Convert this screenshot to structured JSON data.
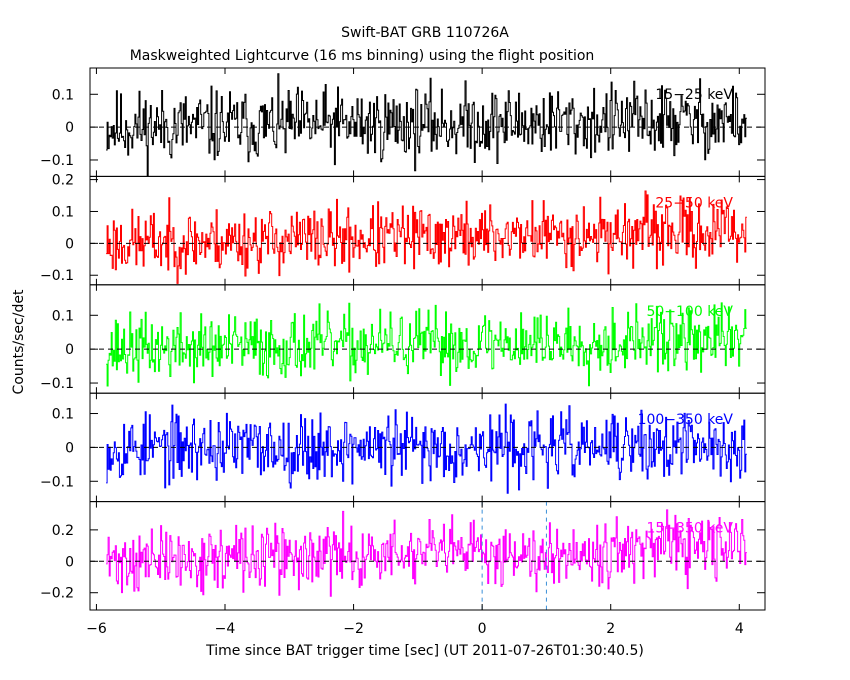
{
  "title": "Swift-BAT GRB 110726A",
  "subtitle": "Maskweighted Lightcurve (16 ms binning) using the flight position",
  "chart_data": {
    "type": "line",
    "title": "Swift-BAT GRB 110726A",
    "subtitle": "Maskweighted Lightcurve (16 ms binning) using the flight position",
    "xlabel": "Time since BAT trigger time [sec] (UT 2011-07-26T01:30:40.5)",
    "ylabel": "Counts/sec/det",
    "xlim": [
      -6.1,
      4.4
    ],
    "xticks": [
      -6,
      -4,
      -2,
      0,
      2,
      4
    ],
    "xtick_labels": [
      "−6",
      "−4",
      "−2",
      "0",
      "2",
      "4"
    ],
    "bin_seconds": 0.016,
    "x_start": -5.85,
    "x_end": 4.12,
    "zero_line": true,
    "vertical_markers_x": [
      0,
      1.0
    ],
    "panels": [
      {
        "label": "15−25 keV",
        "color": "#000000",
        "ylim": [
          -0.15,
          0.18
        ],
        "yticks": [
          -0.1,
          0,
          0.1
        ],
        "ytick_labels": [
          "−0.1",
          "0",
          "0.1"
        ],
        "mean_start": 0.0,
        "mean_end": 0.02,
        "noise": 0.055,
        "seed": 11
      },
      {
        "label": "25−50 keV",
        "color": "#ff0000",
        "ylim": [
          -0.13,
          0.21
        ],
        "yticks": [
          -0.1,
          0,
          0.1,
          0.2
        ],
        "ytick_labels": [
          "−0.1",
          "0",
          "0.1",
          "0.2"
        ],
        "mean_start": 0.0,
        "mean_end": 0.04,
        "noise": 0.05,
        "seed": 23
      },
      {
        "label": "50−100 keV",
        "color": "#00ff00",
        "ylim": [
          -0.13,
          0.19
        ],
        "yticks": [
          -0.1,
          0,
          0.1
        ],
        "ytick_labels": [
          "−0.1",
          "0",
          "0.1"
        ],
        "mean_start": 0.0,
        "mean_end": 0.03,
        "noise": 0.048,
        "seed": 37
      },
      {
        "label": "100−350 keV",
        "color": "#0000ff",
        "ylim": [
          -0.16,
          0.16
        ],
        "yticks": [
          -0.1,
          0,
          0.1
        ],
        "ytick_labels": [
          "−0.1",
          "0",
          "0.1"
        ],
        "mean_start": 0.0,
        "mean_end": 0.0,
        "noise": 0.05,
        "seed": 53
      },
      {
        "label": "15−350 keV",
        "color": "#ff00ff",
        "ylim": [
          -0.31,
          0.38
        ],
        "yticks": [
          -0.2,
          0,
          0.2
        ],
        "ytick_labels": [
          "−0.2",
          "0",
          "0.2"
        ],
        "mean_start": 0.0,
        "mean_end": 0.09,
        "noise": 0.1,
        "seed": 71
      }
    ]
  }
}
